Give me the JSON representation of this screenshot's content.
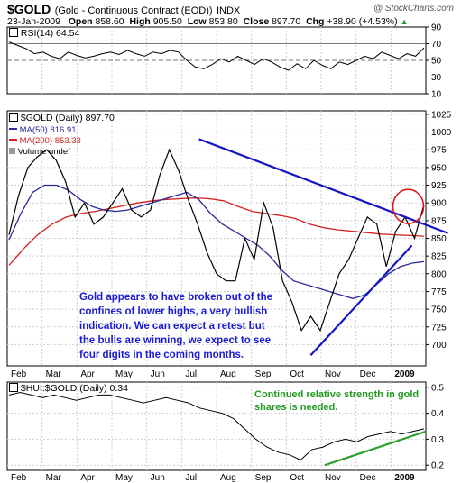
{
  "header": {
    "symbol": "$GOLD",
    "name": "(Gold - Continuous Contract (EOD))",
    "exchange": "INDX",
    "watermark": "@ StockCharts.com",
    "date": "23-Jan-2009",
    "open_label": "Open",
    "open": "858.60",
    "high_label": "High",
    "high": "905.50",
    "low_label": "Low",
    "low": "853.80",
    "close_label": "Close",
    "close": "897.70",
    "chg_label": "Chg",
    "chg": "+38.90 (+4.53%)",
    "chg_arrow": "▲"
  },
  "rsi_panel": {
    "label": "RSI(14) 64.54"
  },
  "price_panel": {
    "label": "$GOLD (Daily) 897.70",
    "legend": [
      {
        "text": "MA(50) 816.91",
        "color": "#2a2a9a"
      },
      {
        "text": "MA(200) 853.33",
        "color": "#d42020"
      },
      {
        "text": "Volume undef",
        "color": "#000000"
      }
    ]
  },
  "hui_panel": {
    "label": "$HUI:$GOLD (Daily) 0.34"
  },
  "annotations": {
    "main": "Gold appears to have broken out of the confines of lower highs, a very bullish indication.  We can expect a retest but the bulls are winning, we expect to see four digits in the coming months.",
    "secondary": "Continued relative strength in gold shares is needed."
  },
  "colors": {
    "price": "#000000",
    "ma50": "#2a2a9a",
    "ma200": "#d42020",
    "trendline": "#1515c8",
    "hui_trend": "#2aa02a",
    "circle": "#e01010"
  },
  "chart_data": [
    {
      "type": "line",
      "title": "RSI(14)",
      "y_ticks": [
        90,
        70,
        50,
        30,
        10
      ],
      "ylim": [
        10,
        90
      ],
      "reference_lines": [
        70,
        50,
        30
      ],
      "x_labels": [
        "Feb",
        "Mar",
        "Apr",
        "May",
        "Jun",
        "Jul",
        "Aug",
        "Sep",
        "Oct",
        "Nov",
        "Dec",
        "2009"
      ],
      "series": [
        {
          "values": [
            72,
            68,
            64,
            58,
            60,
            55,
            52,
            60,
            56,
            53,
            55,
            58,
            60,
            57,
            62,
            58,
            55,
            60,
            58,
            62,
            60,
            50,
            42,
            40,
            45,
            52,
            48,
            55,
            50,
            45,
            52,
            48,
            42,
            38,
            46,
            40,
            50,
            44,
            40,
            48,
            45,
            50,
            55,
            52,
            60,
            56,
            52,
            58,
            55,
            65
          ]
        }
      ]
    },
    {
      "type": "line",
      "title": "$GOLD (Daily) 897.70",
      "y_ticks": [
        1025,
        1000,
        975,
        950,
        925,
        900,
        875,
        850,
        825,
        800,
        775,
        750,
        725,
        700
      ],
      "ylim": [
        670,
        1030
      ],
      "x_labels": [
        "Feb",
        "Mar",
        "Apr",
        "May",
        "Jun",
        "Jul",
        "Aug",
        "Sep",
        "Oct",
        "Nov",
        "Dec",
        "2009"
      ],
      "series": [
        {
          "name": "MA(50) 816.91",
          "values": [
            848,
            885,
            915,
            925,
            925,
            918,
            905,
            895,
            890,
            888,
            890,
            895,
            900,
            905,
            910,
            915,
            905,
            885,
            870,
            860,
            850,
            840,
            825,
            805,
            790,
            785,
            780,
            775,
            770,
            765,
            770,
            785,
            800,
            810,
            815,
            817
          ]
        },
        {
          "name": "MA(200) 853.33",
          "values": [
            812,
            835,
            855,
            870,
            880,
            885,
            888,
            892,
            896,
            900,
            903,
            905,
            906,
            907,
            906,
            903,
            895,
            888,
            885,
            882,
            878,
            870,
            865,
            862,
            860,
            858,
            856,
            855,
            854,
            853
          ]
        },
        {
          "name": "$GOLD",
          "values": [
            855,
            910,
            950,
            965,
            975,
            960,
            930,
            880,
            900,
            870,
            880,
            900,
            920,
            890,
            880,
            890,
            940,
            975,
            945,
            905,
            870,
            830,
            800,
            790,
            790,
            850,
            820,
            900,
            865,
            790,
            760,
            720,
            740,
            720,
            760,
            800,
            820,
            850,
            880,
            870,
            810,
            860,
            880,
            850,
            898
          ]
        }
      ],
      "trendlines": [
        {
          "from": [
            "Jul",
            990
          ],
          "to": [
            "Jan 2009",
            870
          ]
        },
        {
          "from": [
            "Oct",
            685
          ],
          "to": [
            "Jan 2009",
            840
          ]
        }
      ]
    },
    {
      "type": "line",
      "title": "$HUI:$GOLD (Daily) 0.34",
      "y_ticks": [
        0.5,
        0.4,
        0.3,
        0.2
      ],
      "ylim": [
        0.18,
        0.52
      ],
      "x_labels": [
        "Feb",
        "Mar",
        "Apr",
        "May",
        "Jun",
        "Jul",
        "Aug",
        "Sep",
        "Oct",
        "Nov",
        "Dec",
        "2009"
      ],
      "series": [
        {
          "values": [
            0.47,
            0.48,
            0.47,
            0.46,
            0.47,
            0.46,
            0.45,
            0.46,
            0.47,
            0.47,
            0.46,
            0.45,
            0.44,
            0.45,
            0.46,
            0.45,
            0.44,
            0.42,
            0.41,
            0.4,
            0.38,
            0.34,
            0.3,
            0.27,
            0.25,
            0.24,
            0.22,
            0.26,
            0.27,
            0.29,
            0.3,
            0.29,
            0.31,
            0.32,
            0.33,
            0.32,
            0.33,
            0.34
          ]
        }
      ],
      "trendlines": [
        {
          "from": [
            "Nov",
            0.2
          ],
          "to": [
            "Jan 2009",
            0.33
          ]
        }
      ]
    }
  ]
}
